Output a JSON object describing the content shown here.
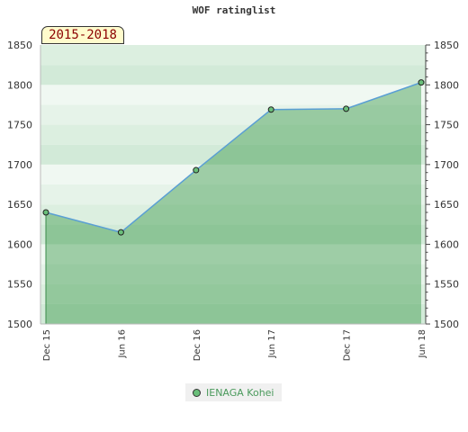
{
  "chart_data": {
    "type": "area",
    "title": "WOF ratinglist",
    "period": "2015-2018",
    "xlabel": "",
    "ylabel": "",
    "ylim": [
      1500,
      1850
    ],
    "yticks": [
      "1500",
      "1550",
      "1600",
      "1650",
      "1700",
      "1750",
      "1800",
      "1850"
    ],
    "xticks": [
      "Dec 15",
      "Jun 16",
      "Dec 16",
      "Jun 17",
      "Dec 17",
      "Jun 18"
    ],
    "grid": true,
    "legend_position": "bottom",
    "series": [
      {
        "name": "IENAGA Kohei",
        "x": [
          "Dec 15",
          "Jun 16",
          "Dec 16",
          "Jun 17",
          "Dec 17",
          "Jun 18"
        ],
        "values": [
          1640,
          1615,
          1693,
          1769,
          1770,
          1803
        ]
      }
    ],
    "colors": {
      "line": "#5a9fd4",
      "marker": "#6abf7a",
      "area": "#3a9a4a"
    }
  }
}
